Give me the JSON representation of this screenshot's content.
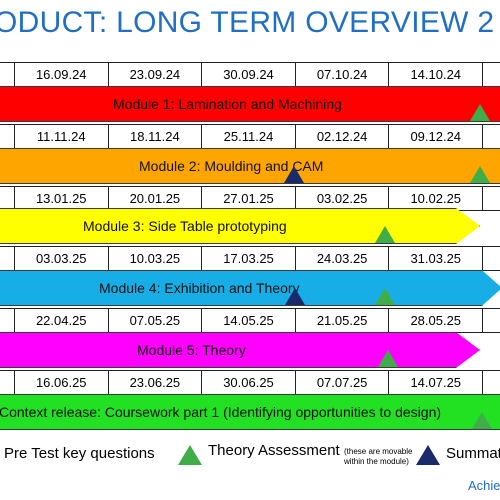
{
  "title": "ODUCT: LONG TERM OVERVIEW 2",
  "rows": [
    {
      "dates": [
        "16.09.24",
        "23.09.24",
        "30.09.24",
        "07.10.24",
        "14.10.24"
      ]
    },
    {
      "dates": [
        "11.11.24",
        "18.11.24",
        "25.11.24",
        "02.12.24",
        "09.12.24"
      ]
    },
    {
      "dates": [
        "13.01.25",
        "20.01.25",
        "27.01.25",
        "03.02.25",
        "10.02.25"
      ]
    },
    {
      "dates": [
        "03.03.25",
        "10.03.25",
        "17.03.25",
        "24.03.25",
        "31.03.25"
      ]
    },
    {
      "dates": [
        "22.04.25",
        "07.05.25",
        "14.05.25",
        "21.05.25",
        "28.05.25"
      ]
    },
    {
      "dates": [
        "16.06.25",
        "23.06.25",
        "30.06.25",
        "07.07.25",
        "14.07.25"
      ]
    }
  ],
  "modules": [
    {
      "label": "Module 1: Lamination and Machining",
      "color": "#ff0000"
    },
    {
      "label": "Module 2: Moulding and CAM",
      "color": "#ffa500"
    },
    {
      "label": "Module 3: Side Table prototyping",
      "color": "#ffff00"
    },
    {
      "label": "Module 4: Exhibition and Theory",
      "color": "#17aee8"
    },
    {
      "label": "Module 5: Theory",
      "color": "#ff00ff"
    },
    {
      "label": "Context release: Coursework part 1 (Identifying opportunities to design)",
      "color": "#22e022"
    }
  ],
  "legend": {
    "pre_test": "Pre Test key questions",
    "theory_assessment": "Theory Assessment",
    "theory_note": "(these are movable within the module)",
    "summative": "Summat"
  },
  "footer": "Achie"
}
